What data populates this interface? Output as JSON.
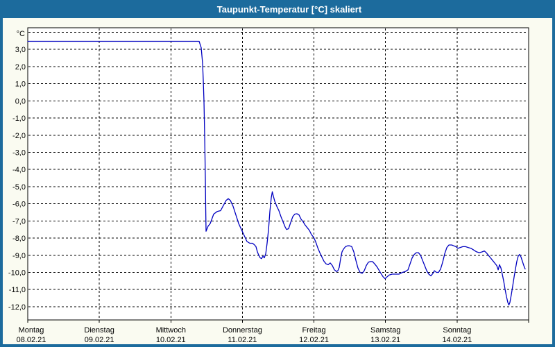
{
  "window": {
    "title": "Taupunkt-Temperatur [°C] skaliert"
  },
  "colors": {
    "titlebar": "#1c6b9d",
    "title_text": "#ffffff",
    "panel_bg": "#fafbf1",
    "plot_bg": "#ffffff",
    "grid": "#000000",
    "axis": "#000000",
    "tick_text": "#000000",
    "line": "#0000c0"
  },
  "chart_data": {
    "type": "line",
    "title": "Taupunkt-Temperatur [°C] skaliert",
    "unit_label": "°C",
    "grid": {
      "style": "dashed",
      "dash": "3 3",
      "horizontal_step": 1,
      "vertical_per_day": true
    },
    "y_axis": {
      "min": -12.77,
      "max": 4.26,
      "gridlines_top_value": 4,
      "gridlines_bottom_value": -12,
      "ticks": [
        {
          "v": 3,
          "label": "3,0"
        },
        {
          "v": 2,
          "label": "2,0"
        },
        {
          "v": 1,
          "label": "1,0"
        },
        {
          "v": 0,
          "label": "0,0"
        },
        {
          "v": -1,
          "label": "-1,0"
        },
        {
          "v": -2,
          "label": "-2,0"
        },
        {
          "v": -3,
          "label": "-3,0"
        },
        {
          "v": -4,
          "label": "-4,0"
        },
        {
          "v": -5,
          "label": "-5,0"
        },
        {
          "v": -6,
          "label": "-6,0"
        },
        {
          "v": -7,
          "label": "-7,0"
        },
        {
          "v": -8,
          "label": "-8,0"
        },
        {
          "v": -9,
          "label": "-9,0"
        },
        {
          "v": -10,
          "label": "-10,0"
        },
        {
          "v": -11,
          "label": "-11,0"
        },
        {
          "v": -12,
          "label": "-12,0"
        }
      ]
    },
    "x_axis": {
      "min": 0,
      "max": 7,
      "unit": "days",
      "days": [
        {
          "day": 0,
          "weekday": "Montag",
          "date": "08.02.21"
        },
        {
          "day": 1,
          "weekday": "Dienstag",
          "date": "09.02.21"
        },
        {
          "day": 2,
          "weekday": "Mittwoch",
          "date": "10.02.21"
        },
        {
          "day": 3,
          "weekday": "Donnerstag",
          "date": "11.02.21"
        },
        {
          "day": 4,
          "weekday": "Freitag",
          "date": "12.02.21"
        },
        {
          "day": 5,
          "weekday": "Samstag",
          "date": "13.02.21"
        },
        {
          "day": 6,
          "weekday": "Sonntag",
          "date": "14.02.21"
        }
      ]
    },
    "series": [
      {
        "name": "Taupunkt-Temperatur",
        "color": "#0000c0",
        "points": [
          [
            0,
            3.47
          ],
          [
            2.395,
            3.47
          ],
          [
            2.424,
            3.1
          ],
          [
            2.443,
            2.2
          ],
          [
            2.453,
            1.2
          ],
          [
            2.463,
            0
          ],
          [
            2.472,
            -2
          ],
          [
            2.482,
            -4.5
          ],
          [
            2.487,
            -6.2
          ],
          [
            2.492,
            -7.6
          ],
          [
            2.521,
            -7.3
          ],
          [
            2.55,
            -7.15
          ],
          [
            2.598,
            -6.6
          ],
          [
            2.647,
            -6.45
          ],
          [
            2.695,
            -6.4
          ],
          [
            2.734,
            -6.1
          ],
          [
            2.773,
            -5.8
          ],
          [
            2.802,
            -5.7
          ],
          [
            2.831,
            -5.8
          ],
          [
            2.87,
            -6.15
          ],
          [
            2.909,
            -6.65
          ],
          [
            2.947,
            -7.15
          ],
          [
            2.986,
            -7.5
          ],
          [
            3.025,
            -7.85
          ],
          [
            3.064,
            -8.2
          ],
          [
            3.103,
            -8.3
          ],
          [
            3.141,
            -8.3
          ],
          [
            3.17,
            -8.4
          ],
          [
            3.19,
            -8.5
          ],
          [
            3.209,
            -8.8
          ],
          [
            3.229,
            -9
          ],
          [
            3.248,
            -9.15
          ],
          [
            3.267,
            -9.2
          ],
          [
            3.287,
            -9.05
          ],
          [
            3.306,
            -9.15
          ],
          [
            3.326,
            -8.9
          ],
          [
            3.345,
            -8.3
          ],
          [
            3.365,
            -7.5
          ],
          [
            3.384,
            -6.45
          ],
          [
            3.403,
            -5.65
          ],
          [
            3.418,
            -5.3
          ],
          [
            3.432,
            -5.55
          ],
          [
            3.452,
            -5.85
          ],
          [
            3.481,
            -6.15
          ],
          [
            3.51,
            -6.4
          ],
          [
            3.539,
            -6.75
          ],
          [
            3.568,
            -7.05
          ],
          [
            3.597,
            -7.35
          ],
          [
            3.616,
            -7.5
          ],
          [
            3.645,
            -7.45
          ],
          [
            3.674,
            -7.1
          ],
          [
            3.704,
            -6.75
          ],
          [
            3.733,
            -6.6
          ],
          [
            3.762,
            -6.58
          ],
          [
            3.791,
            -6.65
          ],
          [
            3.82,
            -6.9
          ],
          [
            3.849,
            -7.05
          ],
          [
            3.878,
            -7.25
          ],
          [
            3.907,
            -7.4
          ],
          [
            3.936,
            -7.55
          ],
          [
            3.965,
            -7.8
          ],
          [
            3.994,
            -7.95
          ],
          [
            4.023,
            -8.2
          ],
          [
            4.052,
            -8.55
          ],
          [
            4.082,
            -8.85
          ],
          [
            4.111,
            -9.1
          ],
          [
            4.14,
            -9.35
          ],
          [
            4.169,
            -9.5
          ],
          [
            4.198,
            -9.55
          ],
          [
            4.227,
            -9.45
          ],
          [
            4.256,
            -9.6
          ],
          [
            4.285,
            -9.85
          ],
          [
            4.315,
            -9.95
          ],
          [
            4.334,
            -9.9
          ],
          [
            4.353,
            -9.7
          ],
          [
            4.373,
            -9.2
          ],
          [
            4.392,
            -8.8
          ],
          [
            4.411,
            -8.65
          ],
          [
            4.44,
            -8.5
          ],
          [
            4.47,
            -8.45
          ],
          [
            4.499,
            -8.45
          ],
          [
            4.528,
            -8.5
          ],
          [
            4.557,
            -8.8
          ],
          [
            4.586,
            -9.3
          ],
          [
            4.615,
            -9.75
          ],
          [
            4.644,
            -10
          ],
          [
            4.673,
            -10.05
          ],
          [
            4.702,
            -9.9
          ],
          [
            4.731,
            -9.6
          ],
          [
            4.761,
            -9.4
          ],
          [
            4.79,
            -9.37
          ],
          [
            4.819,
            -9.37
          ],
          [
            4.848,
            -9.5
          ],
          [
            4.877,
            -9.65
          ],
          [
            4.906,
            -9.85
          ],
          [
            4.935,
            -10.05
          ],
          [
            4.965,
            -10.25
          ],
          [
            4.994,
            -10.37
          ],
          [
            5.023,
            -10.25
          ],
          [
            5.052,
            -10.15
          ],
          [
            5.091,
            -10.1
          ],
          [
            5.139,
            -10.1
          ],
          [
            5.188,
            -10.1
          ],
          [
            5.236,
            -10
          ],
          [
            5.275,
            -9.95
          ],
          [
            5.314,
            -9.85
          ],
          [
            5.343,
            -9.5
          ],
          [
            5.372,
            -9.15
          ],
          [
            5.401,
            -8.95
          ],
          [
            5.43,
            -8.85
          ],
          [
            5.459,
            -8.85
          ],
          [
            5.489,
            -9
          ],
          [
            5.518,
            -9.3
          ],
          [
            5.547,
            -9.6
          ],
          [
            5.576,
            -9.9
          ],
          [
            5.605,
            -10.1
          ],
          [
            5.634,
            -10.2
          ],
          [
            5.663,
            -10.05
          ],
          [
            5.682,
            -9.9
          ],
          [
            5.712,
            -10
          ],
          [
            5.741,
            -10
          ],
          [
            5.77,
            -9.8
          ],
          [
            5.799,
            -9.4
          ],
          [
            5.828,
            -8.9
          ],
          [
            5.857,
            -8.55
          ],
          [
            5.886,
            -8.4
          ],
          [
            5.925,
            -8.4
          ],
          [
            5.954,
            -8.45
          ],
          [
            5.983,
            -8.5
          ],
          [
            6.012,
            -8.6
          ],
          [
            6.041,
            -8.55
          ],
          [
            6.08,
            -8.5
          ],
          [
            6.118,
            -8.5
          ],
          [
            6.157,
            -8.55
          ],
          [
            6.196,
            -8.6
          ],
          [
            6.235,
            -8.7
          ],
          [
            6.273,
            -8.8
          ],
          [
            6.312,
            -8.85
          ],
          [
            6.351,
            -8.8
          ],
          [
            6.38,
            -8.75
          ],
          [
            6.409,
            -8.85
          ],
          [
            6.438,
            -9
          ],
          [
            6.467,
            -9.15
          ],
          [
            6.496,
            -9.3
          ],
          [
            6.525,
            -9.45
          ],
          [
            6.554,
            -9.6
          ],
          [
            6.574,
            -9.85
          ],
          [
            6.593,
            -9.55
          ],
          [
            6.613,
            -9.75
          ],
          [
            6.632,
            -10.1
          ],
          [
            6.651,
            -10.5
          ],
          [
            6.671,
            -11
          ],
          [
            6.69,
            -11.4
          ],
          [
            6.709,
            -11.75
          ],
          [
            6.724,
            -11.9
          ],
          [
            6.738,
            -11.75
          ],
          [
            6.758,
            -11.3
          ],
          [
            6.777,
            -10.8
          ],
          [
            6.797,
            -10.25
          ],
          [
            6.816,
            -9.8
          ],
          [
            6.835,
            -9.35
          ],
          [
            6.855,
            -9.05
          ],
          [
            6.874,
            -8.95
          ],
          [
            6.893,
            -9.1
          ],
          [
            6.913,
            -9.35
          ],
          [
            6.932,
            -9.6
          ],
          [
            6.952,
            -9.8
          ]
        ]
      }
    ],
    "layout_hints": {
      "legend": "none",
      "grid_on": true,
      "flat_segment_value": 3.47,
      "min_value": -11.9
    }
  }
}
